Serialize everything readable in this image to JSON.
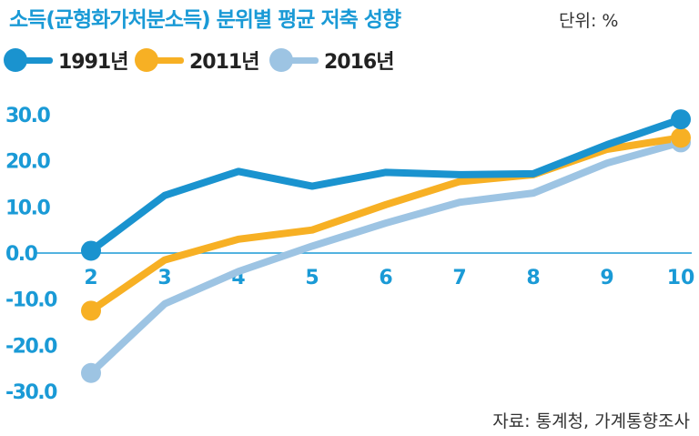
{
  "header": {
    "title": "소득(균형화가처분소득) 분위별 평균 저축 성향",
    "unit": "단위: %"
  },
  "footer": {
    "source": "자료: 통계청, 가계통향조사"
  },
  "colors": {
    "accent": "#1a9ad6",
    "series_1991": "#1a93cf",
    "series_2011": "#f7b024",
    "series_2016": "#9dc4e3"
  },
  "chart_data": {
    "type": "line",
    "title": "소득(균형화가처분소득) 분위별 평균 저축 성향",
    "xlabel": "",
    "ylabel": "",
    "unit": "%",
    "x": [
      2,
      3,
      4,
      5,
      6,
      7,
      8,
      9,
      10
    ],
    "x_tick_labels": [
      "2",
      "3",
      "4",
      "5",
      "6",
      "7",
      "8",
      "9",
      "10"
    ],
    "y_tick_labels": [
      "30.0",
      "20.0",
      "10.0",
      "0.0",
      "-10.0",
      "-20.0",
      "-30.0"
    ],
    "y_ticks": [
      30,
      20,
      10,
      0,
      -10,
      -20,
      -30
    ],
    "ylim": [
      -30,
      30
    ],
    "grid": false,
    "legend_position": "top",
    "series": [
      {
        "name": "1991년",
        "values": [
          0.5,
          12.5,
          17.7,
          14.5,
          17.5,
          17.0,
          17.2,
          23.5,
          29.0
        ],
        "color": "#1a93cf"
      },
      {
        "name": "2011년",
        "values": [
          -12.5,
          -1.5,
          3.0,
          5.0,
          10.5,
          15.5,
          17.0,
          22.5,
          25.0
        ],
        "color": "#f7b024"
      },
      {
        "name": "2016년",
        "values": [
          -26.0,
          -11.0,
          -4.0,
          1.5,
          6.5,
          11.0,
          13.0,
          19.5,
          24.0
        ],
        "color": "#9dc4e3"
      }
    ]
  }
}
